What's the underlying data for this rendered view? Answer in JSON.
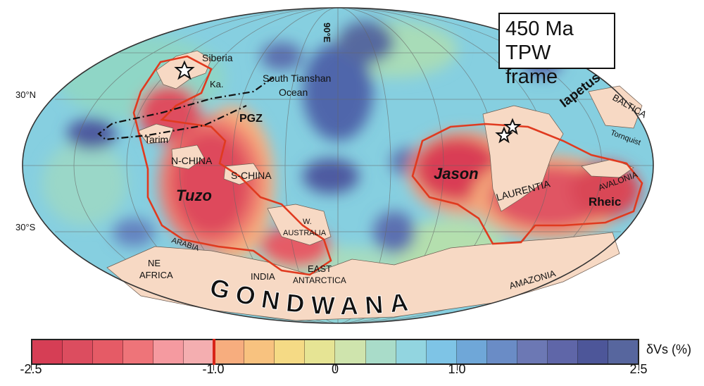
{
  "frame": {
    "age": "450 Ma",
    "reference": "TPW frame"
  },
  "meridian_label": "90°E",
  "latitude_labels": {
    "north": "30°N",
    "south": "30°S"
  },
  "lllvp_labels": {
    "west": "Tuzo",
    "east": "Jason"
  },
  "pgz_label": "PGZ",
  "ocean_labels": {
    "south_tianshan_line1": "South Tianshan",
    "south_tianshan_line2": "Ocean",
    "iapetus": "Iapetus",
    "rheic": "Rheic",
    "tornquist": "Tornquist"
  },
  "continent_labels": {
    "siberia": "Siberia",
    "kazakh": "Ka.",
    "tarim": "Tarim",
    "n_china": "N-CHINA",
    "s_china": "S-CHINA",
    "w_australia_1": "W.",
    "w_australia_2": "AUSTRALIA",
    "arabia": "ARABIA",
    "ne_africa_1": "NE",
    "ne_africa_2": "AFRICA",
    "india": "INDIA",
    "east_antarctica_1": "EAST",
    "east_antarctica_2": "ANTARCTICA",
    "laurentia": "LAURENTIA",
    "baltica": "BALTICA",
    "avalonia": "AVALONIA",
    "amazonia": "AMAZONIA",
    "gondwana": "GONDWANA"
  },
  "colorbar": {
    "unit": "δVs (%)",
    "ticks": [
      "-2.5",
      "-1.0",
      "0",
      "1.0",
      "2.5"
    ],
    "range": [
      -2.5,
      2.5
    ],
    "colors": [
      "#d63e55",
      "#dc4d5f",
      "#e55b66",
      "#ee7479",
      "#f59aa0",
      "#f4aeb0",
      "#f7ad7e",
      "#f8c27f",
      "#f5da85",
      "#e6e494",
      "#cfe4ad",
      "#a9dcc9",
      "#92d5e0",
      "#7ec4e6",
      "#6fa7d8",
      "#6a8cc6",
      "#6c78b4",
      "#5f66a8",
      "#4d5699",
      "#57669e"
    ]
  },
  "colors": {
    "pgz_contour": "#e03a1f",
    "continent_fill": "#f7d9c4",
    "ocean_label": "#3a55b4"
  }
}
